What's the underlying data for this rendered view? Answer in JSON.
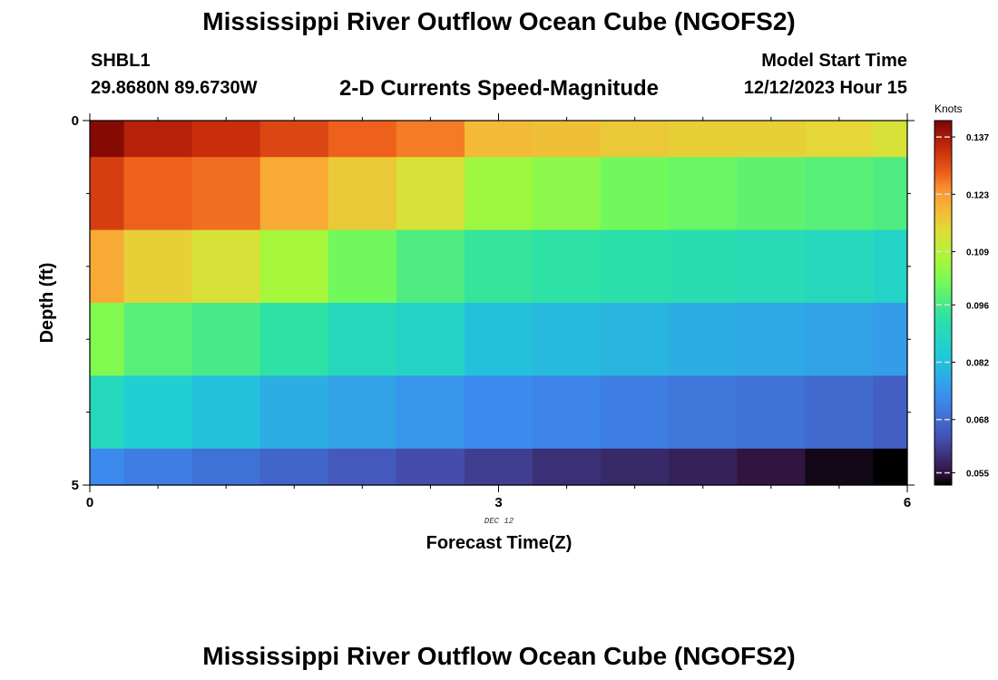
{
  "header": {
    "title": "Mississippi River Outflow Ocean Cube (NGOFS2)",
    "station": "SHBL1",
    "coordinates": "29.8680N  89.6730W",
    "subtitle": "2-D Currents Speed-Magnitude",
    "model_start_label": "Model Start Time",
    "model_start_value": "12/12/2023 Hour 15"
  },
  "footer": {
    "title": "Mississippi River Outflow Ocean Cube (NGOFS2)"
  },
  "chart_data": {
    "type": "heatmap",
    "xlabel": "Forecast Time(Z)",
    "ylabel": "Depth (ft)",
    "x_sublabel": "DEC 12",
    "xlim": [
      0,
      6
    ],
    "ylim": [
      0,
      5
    ],
    "x_ticks": [
      0,
      3,
      6
    ],
    "y_ticks": [
      0,
      5
    ],
    "colorbar": {
      "title": "Knots",
      "ticks": [
        "0.137",
        "0.123",
        "0.109",
        "0.096",
        "0.082",
        "0.068",
        "0.055"
      ],
      "tick_values": [
        0.137,
        0.123,
        0.109,
        0.096,
        0.082,
        0.068,
        0.055
      ],
      "range": [
        0.052,
        0.141
      ]
    },
    "x_edges": [
      0,
      0.25,
      0.75,
      1.25,
      1.75,
      2.25,
      2.75,
      3.25,
      3.75,
      4.25,
      4.75,
      5.25,
      5.75,
      6
    ],
    "depth_edges": [
      0,
      0.5,
      1.5,
      2.5,
      3.5,
      4.5,
      5
    ],
    "values": [
      [
        0.14,
        0.136,
        0.134,
        0.131,
        0.128,
        0.126,
        0.119,
        0.118,
        0.117,
        0.116,
        0.116,
        0.115,
        0.113
      ],
      [
        0.132,
        0.128,
        0.127,
        0.121,
        0.117,
        0.113,
        0.106,
        0.104,
        0.101,
        0.1,
        0.099,
        0.098,
        0.097
      ],
      [
        0.121,
        0.116,
        0.113,
        0.107,
        0.101,
        0.097,
        0.094,
        0.093,
        0.092,
        0.091,
        0.09,
        0.089,
        0.087
      ],
      [
        0.103,
        0.098,
        0.096,
        0.093,
        0.089,
        0.087,
        0.082,
        0.081,
        0.08,
        0.079,
        0.078,
        0.077,
        0.076
      ],
      [
        0.089,
        0.085,
        0.082,
        0.079,
        0.077,
        0.075,
        0.073,
        0.072,
        0.071,
        0.07,
        0.069,
        0.068,
        0.066
      ],
      [
        0.073,
        0.071,
        0.069,
        0.067,
        0.065,
        0.063,
        0.061,
        0.059,
        0.058,
        0.057,
        0.055,
        0.053,
        0.05
      ]
    ]
  }
}
